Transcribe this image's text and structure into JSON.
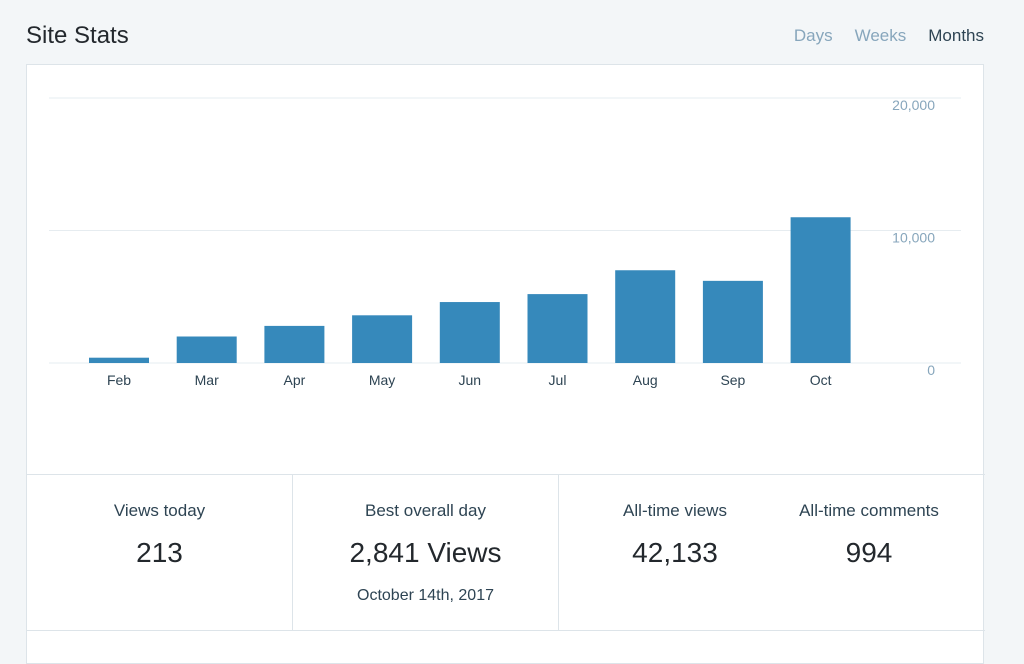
{
  "header": {
    "title": "Site Stats",
    "tabs": [
      {
        "label": "Days",
        "active": false
      },
      {
        "label": "Weeks",
        "active": false
      },
      {
        "label": "Months",
        "active": true
      }
    ]
  },
  "chart_data": {
    "type": "bar",
    "categories": [
      "Feb",
      "Mar",
      "Apr",
      "May",
      "Jun",
      "Jul",
      "Aug",
      "Sep",
      "Oct"
    ],
    "values": [
      400,
      2000,
      2800,
      3600,
      4600,
      5200,
      7000,
      6200,
      11000
    ],
    "ylim": [
      0,
      20000
    ],
    "yticks": [
      "0",
      "10,000",
      "20,000"
    ],
    "ytick_values": [
      0,
      10000,
      20000
    ],
    "grid": true,
    "bar_color": "#3689bb"
  },
  "stats": {
    "views_today": {
      "label": "Views today",
      "value": "213"
    },
    "best_day": {
      "label": "Best overall day",
      "value": "2,841 Views",
      "date": "October 14th, 2017"
    },
    "all_time_views": {
      "label": "All-time views",
      "value": "42,133"
    },
    "all_time_comments": {
      "label": "All-time comments",
      "value": "994"
    }
  },
  "colors": {
    "accent": "#3689bb",
    "muted_tab": "#87a6bc",
    "axis_text": "#87a6bc"
  }
}
